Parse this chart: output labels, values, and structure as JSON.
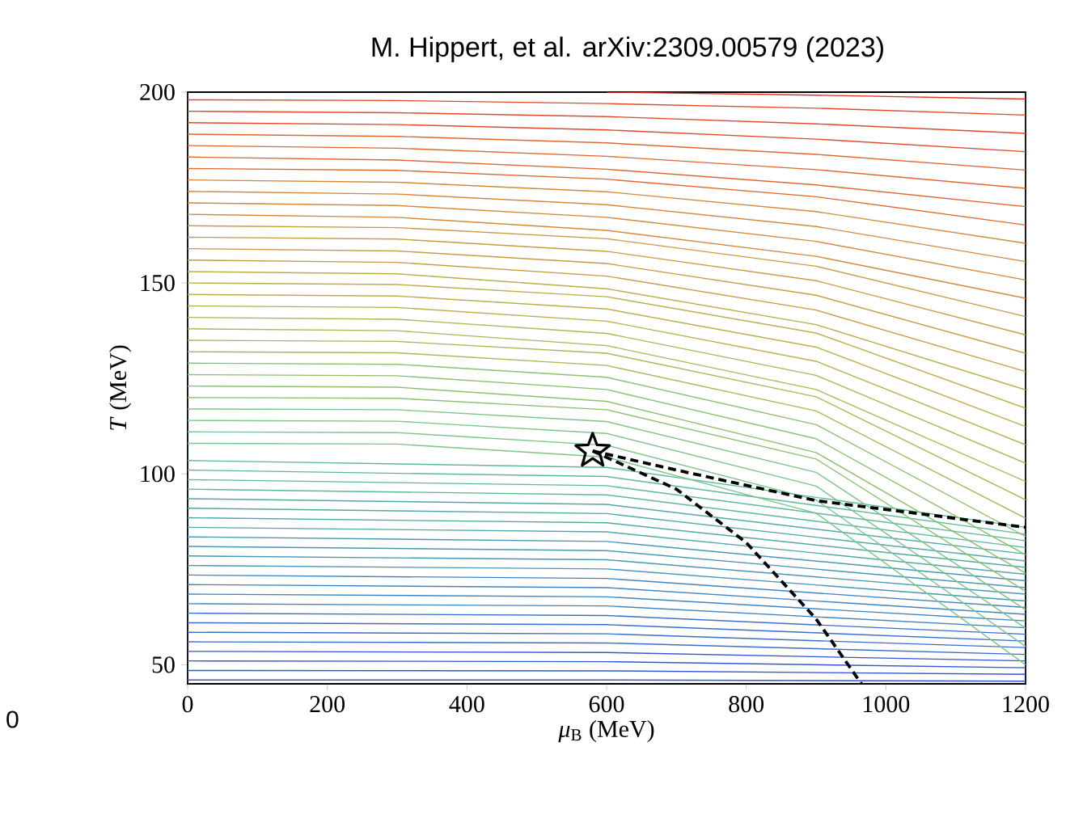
{
  "chart_data": {
    "type": "line",
    "title": "M. Hippert, et al. arXiv:2309.00579 (2023)",
    "xlabel": "*μ*$_{B}$ (MeV)",
    "ylabel": "*T* (MeV)",
    "annotations": [
      "0"
    ],
    "xlim": [
      0,
      1200
    ],
    "ylim": [
      45,
      200
    ],
    "xticks": [
      0,
      200,
      400,
      600,
      800,
      1000,
      1200
    ],
    "yticks": [
      50,
      100,
      150,
      200
    ],
    "marker": "none",
    "line_style": "solid",
    "x": [
      0,
      300,
      600,
      900,
      1200
    ],
    "series": [
      {
        "color": "#3355d6",
        "x": [
          0,
          600,
          1200
        ],
        "values": [
          46,
          46.0,
          45.7
        ]
      },
      {
        "color": "#3355d6",
        "x": [
          0,
          600,
          1200
        ],
        "values": [
          48.5,
          48.4,
          47.5
        ]
      },
      {
        "color": "#3355d6",
        "x": [
          0,
          600,
          1200
        ],
        "values": [
          51,
          50.8,
          49.2
        ]
      },
      {
        "color": "#3355d6",
        "x": [
          0,
          600,
          1200
        ],
        "values": [
          53.5,
          53.2,
          51.0
        ]
      },
      {
        "color": "#3a6ecb",
        "x": [
          0,
          600,
          1200
        ],
        "values": [
          56,
          55.7,
          52.7
        ]
      },
      {
        "color": "#3a6ecb",
        "x": [
          0,
          600,
          1200
        ],
        "values": [
          58.5,
          58.1,
          54.5
        ]
      },
      {
        "color": "#3a6ecb",
        "x": [
          0,
          600,
          1200
        ],
        "values": [
          61,
          60.5,
          56.2
        ]
      },
      {
        "color": "#3a6ecb",
        "x": [
          0,
          600,
          1200
        ],
        "values": [
          63.5,
          62.9,
          58.0
        ]
      },
      {
        "color": "#4084c0",
        "x": [
          0,
          600,
          1200
        ],
        "values": [
          66,
          65.4,
          59.7
        ]
      },
      {
        "color": "#4084c0",
        "x": [
          0,
          600,
          1200
        ],
        "values": [
          68.5,
          67.8,
          61.5
        ]
      },
      {
        "color": "#4084c0",
        "x": [
          0,
          600,
          1200
        ],
        "values": [
          71,
          70.2,
          63.2
        ]
      },
      {
        "color": "#4084c0",
        "x": [
          0,
          600,
          1200
        ],
        "values": [
          73.5,
          72.6,
          65.0
        ]
      },
      {
        "color": "#4797b5",
        "x": [
          0,
          600,
          1200
        ],
        "values": [
          76,
          75.1,
          66.7
        ]
      },
      {
        "color": "#4797b5",
        "x": [
          0,
          600,
          1200
        ],
        "values": [
          78.5,
          77.5,
          68.5
        ]
      },
      {
        "color": "#4797b5",
        "x": [
          0,
          600,
          1200
        ],
        "values": [
          81,
          79.9,
          70.2
        ]
      },
      {
        "color": "#4797b5",
        "x": [
          0,
          600,
          1200
        ],
        "values": [
          83.5,
          82.3,
          72.0
        ]
      },
      {
        "color": "#50a8a8",
        "x": [
          0,
          600,
          1200
        ],
        "values": [
          86,
          84.8,
          73.7
        ]
      },
      {
        "color": "#50a8a8",
        "x": [
          0,
          600,
          1200
        ],
        "values": [
          88.5,
          87.2,
          75.5
        ]
      },
      {
        "color": "#50a8a8",
        "x": [
          0,
          600,
          1200
        ],
        "values": [
          91,
          89.6,
          77.2
        ]
      },
      {
        "color": "#50a8a8",
        "x": [
          0,
          600,
          1200
        ],
        "values": [
          93.5,
          92.0,
          79.0
        ]
      },
      {
        "color": "#5fb79a",
        "x": [
          0,
          600,
          1200
        ],
        "values": [
          96,
          94.5,
          80.7
        ]
      },
      {
        "color": "#5fb79a",
        "x": [
          0,
          600,
          1200
        ],
        "values": [
          98.5,
          96.9,
          82.5
        ]
      },
      {
        "color": "#5fb79a",
        "x": [
          0,
          600,
          1200
        ],
        "values": [
          101,
          99.3,
          84.2
        ]
      },
      {
        "color": "#5fb79a",
        "x": [
          0,
          600,
          1200
        ],
        "values": [
          103.5,
          101.7,
          86.0
        ]
      },
      {
        "color": "#7cc48a",
        "values": [
          108,
          107.8,
          104.4,
          89.7,
          50.0
        ]
      },
      {
        "color": "#7cc48a",
        "values": [
          111,
          110.8,
          107.5,
          93.2,
          54.8
        ]
      },
      {
        "color": "#7cc48a",
        "values": [
          114,
          113.8,
          110.6,
          96.8,
          59.6
        ]
      },
      {
        "color": "#7cc48a",
        "values": [
          117,
          116.8,
          113.7,
          100.4,
          64.4
        ]
      },
      {
        "color": "#8cc070",
        "values": [
          120,
          119.8,
          116.8,
          103.9,
          69.2
        ]
      },
      {
        "color": "#8cc070",
        "values": [
          123,
          122.7,
          119.0,
          105.6,
          74.0
        ]
      },
      {
        "color": "#8cc070",
        "values": [
          126,
          125.7,
          122.1,
          109.2,
          78.8
        ]
      },
      {
        "color": "#8cc070",
        "values": [
          129,
          128.7,
          125.3,
          112.9,
          83.6
        ]
      },
      {
        "color": "#a8b858",
        "values": [
          132,
          131.7,
          128.4,
          116.5,
          88.4
        ]
      },
      {
        "color": "#a8b858",
        "values": [
          135,
          134.7,
          131.6,
          120.2,
          93.2
        ]
      },
      {
        "color": "#a8b858",
        "values": [
          138,
          137.5,
          133.6,
          122.1,
          98.0
        ]
      },
      {
        "color": "#a8b858",
        "values": [
          141,
          140.5,
          136.8,
          125.8,
          102.8
        ]
      },
      {
        "color": "#bcae4c",
        "values": [
          144,
          143.6,
          140.0,
          129.5,
          107.6
        ]
      },
      {
        "color": "#bcae4c",
        "values": [
          147,
          146.6,
          143.2,
          133.2,
          112.4
        ]
      },
      {
        "color": "#bcae4c",
        "values": [
          150,
          149.6,
          146.4,
          136.9,
          117.2
        ]
      },
      {
        "color": "#bcae4c",
        "values": [
          153,
          152.4,
          148.5,
          139.1,
          122.0
        ]
      },
      {
        "color": "#c89c44",
        "values": [
          156,
          155.4,
          151.8,
          142.9,
          126.8
        ]
      },
      {
        "color": "#c89c44",
        "values": [
          159,
          158.4,
          155.1,
          146.8,
          131.6
        ]
      },
      {
        "color": "#c89c44",
        "values": [
          162,
          161.5,
          158.3,
          150.6,
          136.4
        ]
      },
      {
        "color": "#c89c44",
        "values": [
          165,
          164.5,
          161.6,
          154.4,
          141.2
        ]
      },
      {
        "color": "#d4883c",
        "values": [
          168,
          167.2,
          163.8,
          157.0,
          146.0
        ]
      },
      {
        "color": "#d4883c",
        "values": [
          171,
          170.3,
          167.2,
          160.9,
          150.8
        ]
      },
      {
        "color": "#d4883c",
        "values": [
          174,
          173.3,
          170.5,
          164.8,
          155.6
        ]
      },
      {
        "color": "#d4883c",
        "values": [
          177,
          176.4,
          173.9,
          168.7,
          160.4
        ]
      },
      {
        "color": "#dc6a30",
        "values": [
          180,
          179.5,
          177.2,
          172.6,
          165.2
        ]
      },
      {
        "color": "#dc6a30",
        "values": [
          183,
          182.2,
          179.8,
          175.7,
          170.0
        ]
      },
      {
        "color": "#dc6a30",
        "values": [
          186,
          185.3,
          183.2,
          179.7,
          174.8
        ]
      },
      {
        "color": "#dc6a30",
        "values": [
          189,
          188.4,
          186.7,
          183.7,
          179.6
        ]
      },
      {
        "color": "#e04a28",
        "values": [
          192,
          191.5,
          190.1,
          187.7,
          184.4
        ]
      },
      {
        "color": "#e04a28",
        "values": [
          195,
          194.6,
          193.6,
          191.7,
          189.2
        ]
      },
      {
        "color": "#e04a28",
        "values": [
          198,
          197.8,
          197.0,
          195.8,
          194.0
        ]
      },
      {
        "color": "#e03020",
        "x": [
          600,
          900,
          1200
        ],
        "values": [
          200,
          199.2,
          198.2
        ]
      },
      {
        "color": "#000000",
        "line_style": "dashed",
        "x": [
          580,
          700,
          900,
          1200
        ],
        "values": [
          106,
          101,
          93,
          86
        ]
      },
      {
        "color": "#000000",
        "line_style": "dashed",
        "x": [
          580,
          700,
          800,
          900,
          965
        ],
        "values": [
          106,
          96,
          82,
          62,
          45
        ]
      },
      {
        "type": "scatter",
        "marker": "star",
        "color": "#000000",
        "x": [
          580
        ],
        "values": [
          106
        ]
      }
    ]
  }
}
